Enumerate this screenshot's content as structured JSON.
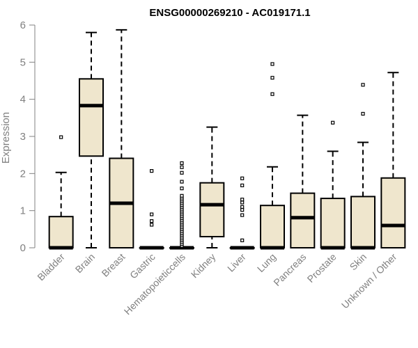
{
  "chart_data": {
    "type": "box",
    "title": "ENSG00000269210 - AC019171.1",
    "xlabel": "",
    "ylabel": "Expression",
    "ylim": [
      0,
      6
    ],
    "yticks": [
      0,
      1,
      2,
      3,
      4,
      5,
      6
    ],
    "grid": false,
    "box_fill": "#efe6cd",
    "line_color": "#000000",
    "axis_color": "#808080",
    "categories": [
      "Bladder",
      "Brain",
      "Breast",
      "Gastric",
      "Hematopoieticcells",
      "Kidney",
      "Liver",
      "Lung",
      "Pancreas",
      "Prostate",
      "Skin",
      "Unknown / Other"
    ],
    "boxes": [
      {
        "category": "Bladder",
        "whisker_low": 0,
        "q1": 0,
        "median": 0,
        "q3": 0.84,
        "whisker_high": 2.03,
        "outliers": [
          2.98
        ]
      },
      {
        "category": "Brain",
        "whisker_low": 0,
        "q1": 2.47,
        "median": 3.83,
        "q3": 4.55,
        "whisker_high": 5.8,
        "outliers": []
      },
      {
        "category": "Breast",
        "whisker_low": 0,
        "q1": 0,
        "median": 1.2,
        "q3": 2.41,
        "whisker_high": 5.87,
        "outliers": []
      },
      {
        "category": "Gastric",
        "whisker_low": 0,
        "q1": 0,
        "median": 0,
        "q3": 0,
        "whisker_high": 0,
        "outliers": [
          0.62,
          0.72,
          0.9,
          2.07
        ]
      },
      {
        "category": "Hematopoieticcells",
        "whisker_low": 0,
        "q1": 0,
        "median": 0,
        "q3": 0,
        "whisker_high": 0,
        "outliers": [
          0.05,
          0.1,
          0.15,
          0.2,
          0.25,
          0.3,
          0.35,
          0.4,
          0.45,
          0.5,
          0.55,
          0.6,
          0.65,
          0.7,
          0.75,
          0.8,
          0.85,
          0.9,
          0.95,
          1.0,
          1.05,
          1.1,
          1.15,
          1.2,
          1.25,
          1.3,
          1.35,
          1.4,
          1.6,
          1.78,
          2.02,
          2.17,
          2.28
        ]
      },
      {
        "category": "Kidney",
        "whisker_low": 0,
        "q1": 0.3,
        "median": 1.16,
        "q3": 1.75,
        "whisker_high": 3.25,
        "outliers": []
      },
      {
        "category": "Liver",
        "whisker_low": 0,
        "q1": 0,
        "median": 0,
        "q3": 0,
        "whisker_high": 0,
        "outliers": [
          0.2,
          0.88,
          1.02,
          1.1,
          1.22,
          1.3,
          1.68,
          1.87
        ]
      },
      {
        "category": "Lung",
        "whisker_low": 0,
        "q1": 0,
        "median": 0,
        "q3": 1.14,
        "whisker_high": 2.18,
        "outliers": [
          4.14,
          4.58,
          4.95
        ]
      },
      {
        "category": "Pancreas",
        "whisker_low": 0,
        "q1": 0,
        "median": 0.81,
        "q3": 1.47,
        "whisker_high": 3.57,
        "outliers": []
      },
      {
        "category": "Prostate",
        "whisker_low": 0,
        "q1": 0,
        "median": 0,
        "q3": 1.33,
        "whisker_high": 2.6,
        "outliers": [
          3.37
        ]
      },
      {
        "category": "Skin",
        "whisker_low": 0,
        "q1": 0,
        "median": 0,
        "q3": 1.38,
        "whisker_high": 2.84,
        "outliers": [
          3.61,
          4.39
        ]
      },
      {
        "category": "Unknown / Other",
        "whisker_low": 0,
        "q1": 0,
        "median": 0.6,
        "q3": 1.88,
        "whisker_high": 4.72,
        "outliers": []
      }
    ]
  }
}
